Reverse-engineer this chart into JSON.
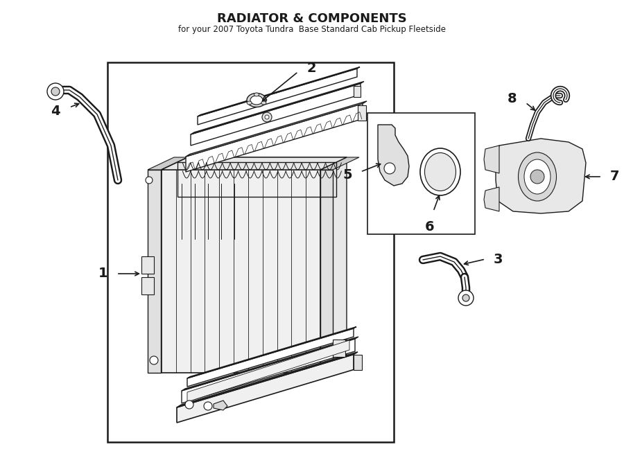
{
  "title": "RADIATOR & COMPONENTS",
  "subtitle": "for your 2007 Toyota Tundra  Base Standard Cab Pickup Fleetside",
  "bg_color": "#ffffff",
  "lc": "#1a1a1a",
  "fig_w": 9.0,
  "fig_h": 6.61,
  "dpi": 100
}
